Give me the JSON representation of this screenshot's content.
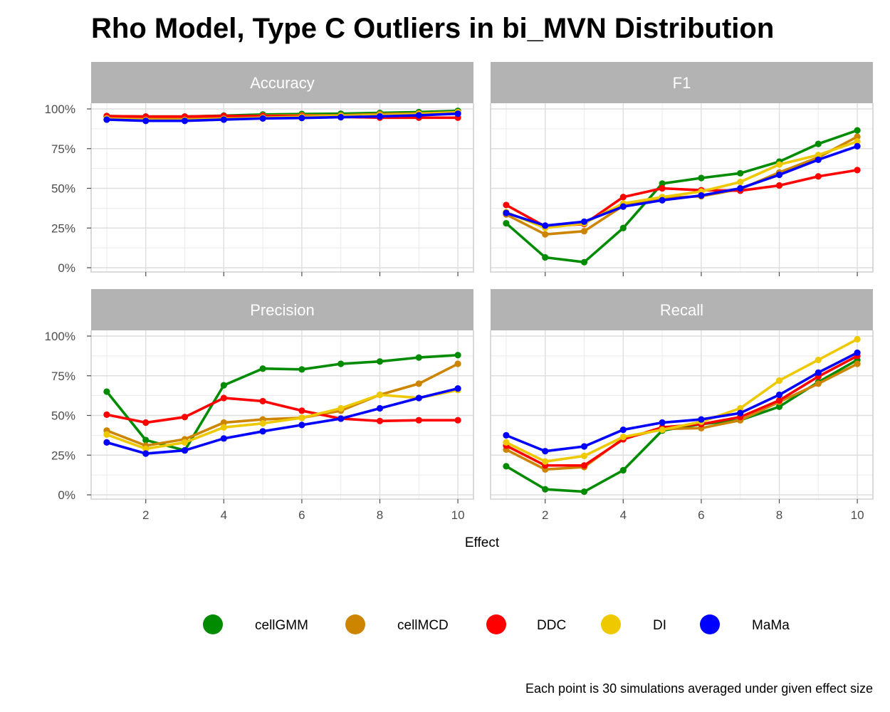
{
  "chart_data": {
    "type": "line",
    "title": "Rho Model, Type C Outliers in bi_MVN Distribution",
    "xlabel": "Effect",
    "ylabel": "",
    "caption": "Each point is 30 simulations averaged under given effect size",
    "x": [
      1,
      2,
      3,
      4,
      5,
      6,
      7,
      8,
      9,
      10
    ],
    "x_ticks": [
      2,
      4,
      6,
      8,
      10
    ],
    "x_tick_labels": [
      "2",
      "4",
      "6",
      "8",
      "10"
    ],
    "ylim": [
      0,
      100
    ],
    "y_ticks": [
      0,
      25,
      50,
      75,
      100
    ],
    "y_tick_labels": [
      "0%",
      "25%",
      "50%",
      "75%",
      "100%"
    ],
    "grid": true,
    "legend_position": "bottom",
    "colors": {
      "cellGMM": "#008B00",
      "cellMCD": "#CD8500",
      "DDC": "#FF0000",
      "DI": "#EEC900",
      "MaMa": "#0000FF"
    },
    "legend": [
      "cellGMM",
      "cellMCD",
      "DDC",
      "DI",
      "MaMa"
    ],
    "panels": [
      {
        "label": "Accuracy",
        "series": [
          {
            "name": "cellGMM",
            "values": [
              95.5,
              95.2,
              95.2,
              95.8,
              96.5,
              96.8,
              97.0,
              97.5,
              98.0,
              98.8
            ]
          },
          {
            "name": "cellMCD",
            "values": [
              95.0,
              94.5,
              94.5,
              95.2,
              95.8,
              96.0,
              96.0,
              96.8,
              97.2,
              98.0
            ]
          },
          {
            "name": "DDC",
            "values": [
              95.5,
              95.2,
              95.2,
              95.6,
              95.5,
              95.4,
              95.0,
              94.5,
              94.5,
              94.5
            ]
          },
          {
            "name": "DI",
            "values": [
              94.0,
              93.0,
              93.0,
              93.8,
              94.5,
              95.0,
              95.5,
              96.0,
              96.8,
              97.8
            ]
          },
          {
            "name": "MaMa",
            "values": [
              93.3,
              92.5,
              92.5,
              93.3,
              94.0,
              94.3,
              94.8,
              95.3,
              96.0,
              97.0
            ]
          }
        ]
      },
      {
        "label": "F1",
        "series": [
          {
            "name": "cellGMM",
            "values": [
              28.0,
              6.5,
              3.5,
              25.0,
              53.0,
              56.5,
              59.5,
              66.8,
              78.0,
              86.5
            ]
          },
          {
            "name": "cellMCD",
            "values": [
              33.5,
              21.0,
              23.0,
              39.0,
              44.0,
              45.0,
              49.5,
              60.0,
              69.5,
              82.5
            ]
          },
          {
            "name": "DDC",
            "values": [
              39.5,
              26.0,
              27.5,
              44.5,
              50.0,
              48.8,
              48.5,
              51.8,
              57.5,
              61.5
            ]
          },
          {
            "name": "DI",
            "values": [
              35.0,
              25.0,
              28.0,
              40.5,
              44.5,
              48.0,
              54.0,
              65.0,
              71.0,
              79.5
            ]
          },
          {
            "name": "MaMa",
            "values": [
              34.5,
              26.5,
              29.0,
              38.5,
              42.5,
              45.5,
              50.0,
              58.5,
              68.0,
              76.5
            ]
          }
        ]
      },
      {
        "label": "Precision",
        "series": [
          {
            "name": "cellGMM",
            "values": [
              65.0,
              34.5,
              28.0,
              69.0,
              79.5,
              79.0,
              82.5,
              84.0,
              86.5,
              88.0
            ]
          },
          {
            "name": "cellMCD",
            "values": [
              40.5,
              31.0,
              35.0,
              45.5,
              47.5,
              48.5,
              53.0,
              63.0,
              70.0,
              82.5
            ]
          },
          {
            "name": "DDC",
            "values": [
              50.5,
              45.5,
              49.0,
              61.0,
              59.0,
              53.0,
              48.0,
              46.5,
              47.0,
              47.0
            ]
          },
          {
            "name": "DI",
            "values": [
              38.0,
              29.0,
              33.0,
              42.5,
              45.0,
              48.5,
              54.5,
              63.0,
              61.0,
              66.0
            ]
          },
          {
            "name": "MaMa",
            "values": [
              33.0,
              26.0,
              28.0,
              35.5,
              40.0,
              44.0,
              48.0,
              54.5,
              61.0,
              67.0
            ]
          }
        ]
      },
      {
        "label": "Recall",
        "series": [
          {
            "name": "cellGMM",
            "values": [
              18.0,
              3.5,
              2.0,
              15.5,
              40.5,
              44.5,
              47.0,
              55.5,
              71.0,
              85.0
            ]
          },
          {
            "name": "cellMCD",
            "values": [
              28.5,
              16.0,
              17.5,
              35.5,
              41.5,
              42.0,
              47.0,
              58.5,
              70.0,
              82.5
            ]
          },
          {
            "name": "DDC",
            "values": [
              31.0,
              18.5,
              18.5,
              35.0,
              42.5,
              44.5,
              49.0,
              59.5,
              74.5,
              87.5
            ]
          },
          {
            "name": "DI",
            "values": [
              33.0,
              21.0,
              24.5,
              36.5,
              41.0,
              46.0,
              54.5,
              72.0,
              85.0,
              98.0
            ]
          },
          {
            "name": "MaMa",
            "values": [
              37.5,
              27.5,
              30.5,
              41.0,
              45.5,
              47.5,
              51.5,
              63.0,
              77.0,
              89.5
            ]
          }
        ]
      }
    ]
  }
}
